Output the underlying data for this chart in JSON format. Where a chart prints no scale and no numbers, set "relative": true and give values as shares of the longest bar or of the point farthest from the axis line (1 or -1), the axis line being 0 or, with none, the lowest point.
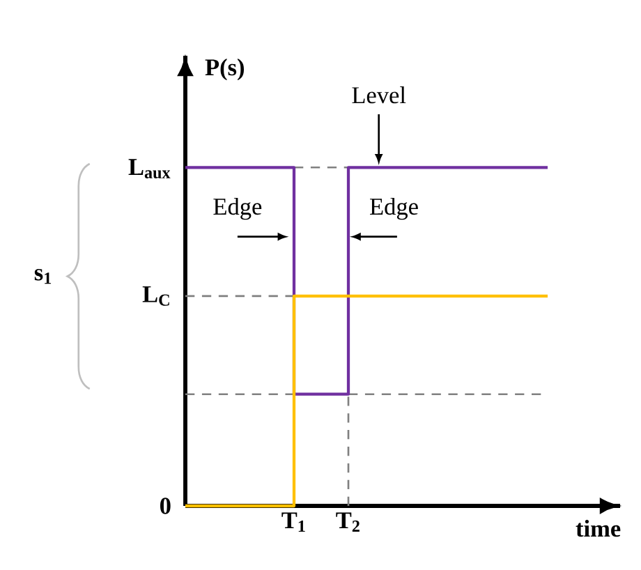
{
  "chart_data": {
    "type": "step",
    "relative": true,
    "xlabel": "time",
    "ylabel": "P(s)",
    "categories": [
      null,
      null,
      null,
      null,
      null,
      null,
      "T$_{1}$",
      null,
      null,
      "T$_{2}$",
      null,
      null,
      null,
      null,
      null,
      null,
      null,
      null,
      null,
      null,
      null,
      null,
      null,
      null,
      null
    ],
    "series": [
      {
        "color": "#7030a0",
        "values": [
          1,
          1,
          1,
          1,
          1,
          1,
          0.33,
          0.33,
          0.33,
          1,
          1,
          1,
          1,
          1,
          1,
          1,
          1,
          1,
          1,
          1,
          1,
          null,
          null,
          null,
          null
        ]
      },
      {
        "color": "#ffc000",
        "values": [
          0,
          0,
          0,
          0,
          0,
          0,
          0.62,
          0.62,
          0.62,
          0.62,
          0.62,
          0.62,
          0.62,
          0.62,
          0.62,
          0.62,
          0.62,
          0.62,
          0.62,
          0.62,
          0.62,
          null,
          null,
          null,
          null
        ]
      }
    ],
    "ref_lines": [
      {
        "axis": "y",
        "value": 1,
        "color": "#808080",
        "line_style": "dashed"
      },
      {
        "axis": "y",
        "value": 0.62,
        "label": "L$_{C}$",
        "color": "#808080",
        "line_style": "dashed"
      },
      {
        "axis": "y",
        "value": 0.33,
        "color": "#808080",
        "line_style": "dashed"
      },
      {
        "axis": "x",
        "value": "T$_{2}$",
        "color": "#808080",
        "line_style": "dashed"
      }
    ],
    "annotations": [
      "Level",
      "Edge",
      "Edge",
      "s$_{1}$",
      "0",
      "L$_{aux}$"
    ]
  }
}
